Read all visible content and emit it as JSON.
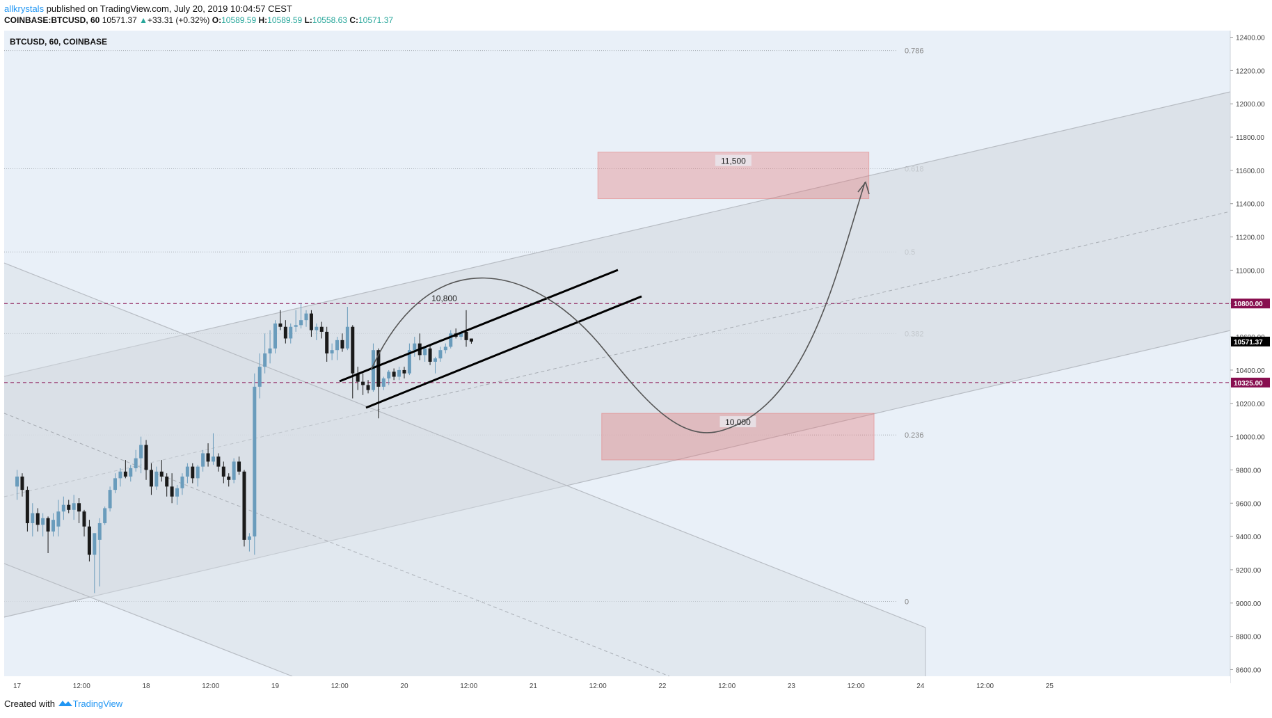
{
  "header": {
    "author": "allkrystals",
    "published": "published on TradingView.com, July 20, 2019 10:04:57 CEST",
    "symbol": "COINBASE:BTCUSD, 60",
    "last": "10571.37",
    "arrow": "▲",
    "change": "+33.31 (+0.32%)",
    "o_label": "O:",
    "o": "10589.59",
    "h_label": "H:",
    "h": "10589.59",
    "l_label": "L:",
    "l": "10558.63",
    "c_label": "C:",
    "c": "10571.37"
  },
  "footer": {
    "created": "Created with",
    "brand": "TradingView"
  },
  "chart_data": {
    "type": "candlestick",
    "title": "BTCUSD, 60, COINBASE",
    "ylim": [
      8560,
      12440
    ],
    "xlim": [
      -0.1,
      9.4
    ],
    "y_ticks": [
      "12400.00",
      "12200.00",
      "12000.00",
      "11800.00",
      "11600.00",
      "11400.00",
      "11200.00",
      "11000.00",
      "10800.00",
      "10600.00",
      "10400.00",
      "10200.00",
      "10000.00",
      "9800.00",
      "9600.00",
      "9400.00",
      "9200.00",
      "9000.00",
      "8800.00",
      "8600.00"
    ],
    "x_ticks": [
      {
        "t": 0,
        "label": "17"
      },
      {
        "t": 0.5,
        "label": "12:00"
      },
      {
        "t": 1,
        "label": "18"
      },
      {
        "t": 1.5,
        "label": "12:00"
      },
      {
        "t": 2,
        "label": "19"
      },
      {
        "t": 2.5,
        "label": "12:00"
      },
      {
        "t": 3,
        "label": "20"
      },
      {
        "t": 3.5,
        "label": "12:00"
      },
      {
        "t": 4,
        "label": "21"
      },
      {
        "t": 4.5,
        "label": "12:00"
      },
      {
        "t": 5,
        "label": "22"
      },
      {
        "t": 5.5,
        "label": "12:00"
      },
      {
        "t": 6,
        "label": "23"
      },
      {
        "t": 6.5,
        "label": "12:00"
      },
      {
        "t": 7,
        "label": "24"
      },
      {
        "t": 7.5,
        "label": "12:00"
      },
      {
        "t": 8,
        "label": "25"
      }
    ],
    "price_labels": [
      {
        "label": "10800.00",
        "value": 10800,
        "color": "#880e4f"
      },
      {
        "label": "10571.37",
        "value": 10571.37,
        "color": "#000000"
      },
      {
        "label": "10325.00",
        "value": 10325,
        "color": "#880e4f"
      }
    ],
    "horizontal_lines": [
      {
        "value": 10800,
        "color": "#880e4f"
      },
      {
        "value": 10325,
        "color": "#880e4f"
      }
    ],
    "fib_levels": [
      {
        "label": "0.786",
        "value": 12320
      },
      {
        "label": "0.618",
        "value": 11610
      },
      {
        "label": "0.5",
        "value": 11110
      },
      {
        "label": "0.382",
        "value": 10620
      },
      {
        "label": "0.236",
        "value": 10010
      },
      {
        "label": "0",
        "value": 9010
      }
    ],
    "targets": [
      {
        "label": "11,500",
        "t_start": 4.5,
        "t_end": 6.6,
        "y_low": 11430,
        "y_high": 11710
      },
      {
        "label": "10.000",
        "t_start": 4.53,
        "t_end": 6.64,
        "y_low": 9860,
        "y_high": 10140
      }
    ],
    "annotations": [
      {
        "label": "10,800",
        "t": 3.31,
        "value": 10830
      }
    ],
    "candles": [
      {
        "t": 0.0,
        "o": 9700,
        "h": 9800,
        "l": 9620,
        "c": 9760
      },
      {
        "t": 0.04,
        "o": 9760,
        "h": 9780,
        "l": 9640,
        "c": 9680
      },
      {
        "t": 0.08,
        "o": 9680,
        "h": 9700,
        "l": 9430,
        "c": 9480
      },
      {
        "t": 0.12,
        "o": 9480,
        "h": 9600,
        "l": 9400,
        "c": 9540
      },
      {
        "t": 0.16,
        "o": 9540,
        "h": 9570,
        "l": 9430,
        "c": 9470
      },
      {
        "t": 0.2,
        "o": 9470,
        "h": 9540,
        "l": 9400,
        "c": 9510
      },
      {
        "t": 0.24,
        "o": 9510,
        "h": 9520,
        "l": 9300,
        "c": 9430
      },
      {
        "t": 0.28,
        "o": 9430,
        "h": 9540,
        "l": 9400,
        "c": 9500
      },
      {
        "t": 0.32,
        "o": 9460,
        "h": 9620,
        "l": 9400,
        "c": 9550
      },
      {
        "t": 0.36,
        "o": 9550,
        "h": 9640,
        "l": 9500,
        "c": 9590
      },
      {
        "t": 0.4,
        "o": 9590,
        "h": 9620,
        "l": 9540,
        "c": 9560
      },
      {
        "t": 0.44,
        "o": 9560,
        "h": 9650,
        "l": 9500,
        "c": 9600
      },
      {
        "t": 0.48,
        "o": 9600,
        "h": 9630,
        "l": 9480,
        "c": 9550
      },
      {
        "t": 0.52,
        "o": 9550,
        "h": 9560,
        "l": 9400,
        "c": 9460
      },
      {
        "t": 0.56,
        "o": 9460,
        "h": 9500,
        "l": 9250,
        "c": 9290
      },
      {
        "t": 0.6,
        "o": 9290,
        "h": 9420,
        "l": 9060,
        "c": 9420
      },
      {
        "t": 0.64,
        "o": 9380,
        "h": 9510,
        "l": 9100,
        "c": 9480
      },
      {
        "t": 0.68,
        "o": 9480,
        "h": 9580,
        "l": 9470,
        "c": 9570
      },
      {
        "t": 0.72,
        "o": 9570,
        "h": 9700,
        "l": 9550,
        "c": 9680
      },
      {
        "t": 0.76,
        "o": 9680,
        "h": 9780,
        "l": 9660,
        "c": 9750
      },
      {
        "t": 0.8,
        "o": 9750,
        "h": 9810,
        "l": 9700,
        "c": 9790
      },
      {
        "t": 0.84,
        "o": 9790,
        "h": 9860,
        "l": 9750,
        "c": 9760
      },
      {
        "t": 0.88,
        "o": 9760,
        "h": 9830,
        "l": 9730,
        "c": 9810
      },
      {
        "t": 0.92,
        "o": 9810,
        "h": 9920,
        "l": 9790,
        "c": 9870
      },
      {
        "t": 0.96,
        "o": 9870,
        "h": 10000,
        "l": 9780,
        "c": 9950
      },
      {
        "t": 1.0,
        "o": 9950,
        "h": 9980,
        "l": 9740,
        "c": 9800
      },
      {
        "t": 1.04,
        "o": 9800,
        "h": 9840,
        "l": 9650,
        "c": 9700
      },
      {
        "t": 1.08,
        "o": 9700,
        "h": 9820,
        "l": 9680,
        "c": 9790
      },
      {
        "t": 1.12,
        "o": 9790,
        "h": 9860,
        "l": 9730,
        "c": 9760
      },
      {
        "t": 1.16,
        "o": 9760,
        "h": 9780,
        "l": 9640,
        "c": 9700
      },
      {
        "t": 1.2,
        "o": 9700,
        "h": 9780,
        "l": 9600,
        "c": 9640
      },
      {
        "t": 1.24,
        "o": 9640,
        "h": 9710,
        "l": 9590,
        "c": 9690
      },
      {
        "t": 1.28,
        "o": 9690,
        "h": 9780,
        "l": 9650,
        "c": 9760
      },
      {
        "t": 1.32,
        "o": 9760,
        "h": 9840,
        "l": 9720,
        "c": 9820
      },
      {
        "t": 1.36,
        "o": 9820,
        "h": 9840,
        "l": 9720,
        "c": 9750
      },
      {
        "t": 1.4,
        "o": 9750,
        "h": 9830,
        "l": 9700,
        "c": 9820
      },
      {
        "t": 1.44,
        "o": 9820,
        "h": 9920,
        "l": 9790,
        "c": 9900
      },
      {
        "t": 1.48,
        "o": 9900,
        "h": 9960,
        "l": 9820,
        "c": 9850
      },
      {
        "t": 1.52,
        "o": 9850,
        "h": 10020,
        "l": 9830,
        "c": 9880
      },
      {
        "t": 1.56,
        "o": 9880,
        "h": 9900,
        "l": 9790,
        "c": 9820
      },
      {
        "t": 1.6,
        "o": 9820,
        "h": 9850,
        "l": 9720,
        "c": 9760
      },
      {
        "t": 1.64,
        "o": 9760,
        "h": 9780,
        "l": 9700,
        "c": 9740
      },
      {
        "t": 1.68,
        "o": 9740,
        "h": 9870,
        "l": 9720,
        "c": 9850
      },
      {
        "t": 1.72,
        "o": 9850,
        "h": 9880,
        "l": 9770,
        "c": 9790
      },
      {
        "t": 1.76,
        "o": 9790,
        "h": 9800,
        "l": 9340,
        "c": 9380
      },
      {
        "t": 1.8,
        "o": 9380,
        "h": 9420,
        "l": 9310,
        "c": 9400
      },
      {
        "t": 1.84,
        "o": 9400,
        "h": 10380,
        "l": 9290,
        "c": 10300
      },
      {
        "t": 1.88,
        "o": 10300,
        "h": 10500,
        "l": 10230,
        "c": 10420
      },
      {
        "t": 1.92,
        "o": 10420,
        "h": 10620,
        "l": 10380,
        "c": 10500
      },
      {
        "t": 1.96,
        "o": 10500,
        "h": 10640,
        "l": 10440,
        "c": 10530
      },
      {
        "t": 2.0,
        "o": 10530,
        "h": 10700,
        "l": 10500,
        "c": 10680
      },
      {
        "t": 2.04,
        "o": 10680,
        "h": 10760,
        "l": 10640,
        "c": 10660
      },
      {
        "t": 2.08,
        "o": 10660,
        "h": 10700,
        "l": 10560,
        "c": 10590
      },
      {
        "t": 2.12,
        "o": 10590,
        "h": 10680,
        "l": 10560,
        "c": 10660
      },
      {
        "t": 2.16,
        "o": 10660,
        "h": 10760,
        "l": 10630,
        "c": 10670
      },
      {
        "t": 2.2,
        "o": 10670,
        "h": 10800,
        "l": 10650,
        "c": 10700
      },
      {
        "t": 2.24,
        "o": 10700,
        "h": 10760,
        "l": 10660,
        "c": 10740
      },
      {
        "t": 2.28,
        "o": 10740,
        "h": 10760,
        "l": 10600,
        "c": 10640
      },
      {
        "t": 2.32,
        "o": 10640,
        "h": 10680,
        "l": 10580,
        "c": 10660
      },
      {
        "t": 2.36,
        "o": 10660,
        "h": 10690,
        "l": 10590,
        "c": 10630
      },
      {
        "t": 2.4,
        "o": 10630,
        "h": 10660,
        "l": 10450,
        "c": 10500
      },
      {
        "t": 2.44,
        "o": 10500,
        "h": 10560,
        "l": 10460,
        "c": 10520
      },
      {
        "t": 2.48,
        "o": 10520,
        "h": 10600,
        "l": 10460,
        "c": 10580
      },
      {
        "t": 2.52,
        "o": 10580,
        "h": 10620,
        "l": 10510,
        "c": 10530
      },
      {
        "t": 2.56,
        "o": 10530,
        "h": 10780,
        "l": 10520,
        "c": 10660
      },
      {
        "t": 2.6,
        "o": 10660,
        "h": 10670,
        "l": 10230,
        "c": 10380
      },
      {
        "t": 2.64,
        "o": 10380,
        "h": 10420,
        "l": 10280,
        "c": 10330
      },
      {
        "t": 2.68,
        "o": 10330,
        "h": 10380,
        "l": 10250,
        "c": 10310
      },
      {
        "t": 2.72,
        "o": 10310,
        "h": 10340,
        "l": 10260,
        "c": 10280
      },
      {
        "t": 2.76,
        "o": 10280,
        "h": 10560,
        "l": 10270,
        "c": 10520
      },
      {
        "t": 2.8,
        "o": 10520,
        "h": 10530,
        "l": 10110,
        "c": 10300
      },
      {
        "t": 2.84,
        "o": 10300,
        "h": 10360,
        "l": 10280,
        "c": 10350
      },
      {
        "t": 2.88,
        "o": 10350,
        "h": 10400,
        "l": 10310,
        "c": 10390
      },
      {
        "t": 2.92,
        "o": 10390,
        "h": 10410,
        "l": 10340,
        "c": 10360
      },
      {
        "t": 2.96,
        "o": 10360,
        "h": 10420,
        "l": 10340,
        "c": 10400
      },
      {
        "t": 3.0,
        "o": 10400,
        "h": 10420,
        "l": 10350,
        "c": 10380
      },
      {
        "t": 3.04,
        "o": 10380,
        "h": 10560,
        "l": 10370,
        "c": 10520
      },
      {
        "t": 3.08,
        "o": 10520,
        "h": 10600,
        "l": 10480,
        "c": 10560
      },
      {
        "t": 3.12,
        "o": 10560,
        "h": 10620,
        "l": 10460,
        "c": 10490
      },
      {
        "t": 3.16,
        "o": 10490,
        "h": 10540,
        "l": 10450,
        "c": 10530
      },
      {
        "t": 3.2,
        "o": 10530,
        "h": 10550,
        "l": 10430,
        "c": 10450
      },
      {
        "t": 3.24,
        "o": 10450,
        "h": 10480,
        "l": 10380,
        "c": 10470
      },
      {
        "t": 3.28,
        "o": 10470,
        "h": 10540,
        "l": 10450,
        "c": 10520
      },
      {
        "t": 3.32,
        "o": 10520,
        "h": 10560,
        "l": 10500,
        "c": 10540
      },
      {
        "t": 3.36,
        "o": 10540,
        "h": 10640,
        "l": 10530,
        "c": 10620
      },
      {
        "t": 3.4,
        "o": 10620,
        "h": 10650,
        "l": 10590,
        "c": 10600
      },
      {
        "t": 3.44,
        "o": 10600,
        "h": 10640,
        "l": 10580,
        "c": 10630
      },
      {
        "t": 3.48,
        "o": 10630,
        "h": 10760,
        "l": 10540,
        "c": 10580
      },
      {
        "t": 3.52,
        "o": 10589.59,
        "h": 10589.59,
        "l": 10558.63,
        "c": 10571.37
      }
    ]
  }
}
